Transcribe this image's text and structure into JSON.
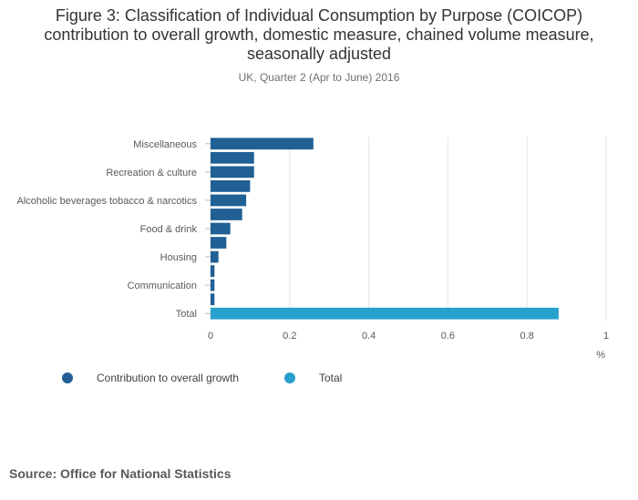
{
  "title": "Figure 3: Classification of Individual Consumption by Purpose (COICOP) contribution to overall growth, domestic measure, chained volume measure, seasonally adjusted",
  "subtitle": "UK, Quarter 2 (Apr to June) 2016",
  "source": "Source: Office for National Statistics",
  "colors": {
    "contribution": "#206095",
    "total": "#27a0cc",
    "grid": "#e6e6e6",
    "axis_text": "#58595b"
  },
  "legend": [
    {
      "name": "Contribution to overall growth",
      "color": "#206095"
    },
    {
      "name": "Total",
      "color": "#27a0cc"
    }
  ],
  "chart_data": {
    "type": "bar",
    "orientation": "horizontal",
    "categories": [
      "Miscellaneous",
      "",
      "Recreation & culture",
      "",
      "Alcoholic beverages tobacco & narcotics",
      "",
      "Food & drink",
      "",
      "Housing",
      "",
      "Communication",
      "",
      "Total"
    ],
    "series": [
      {
        "name": "Contribution to overall growth",
        "values": [
          0.26,
          0.11,
          0.11,
          0.1,
          0.09,
          0.08,
          0.05,
          0.04,
          0.02,
          0.01,
          0.01,
          0.01,
          null
        ]
      },
      {
        "name": "Total",
        "values": [
          null,
          null,
          null,
          null,
          null,
          null,
          null,
          null,
          null,
          null,
          null,
          null,
          0.88
        ]
      }
    ],
    "xlim": [
      0,
      1
    ],
    "xticks": [
      0,
      0.2,
      0.4,
      0.6,
      0.8,
      1
    ],
    "xlabel": "%",
    "ylabel": "",
    "grid": true,
    "legend_position": "bottom-left"
  }
}
